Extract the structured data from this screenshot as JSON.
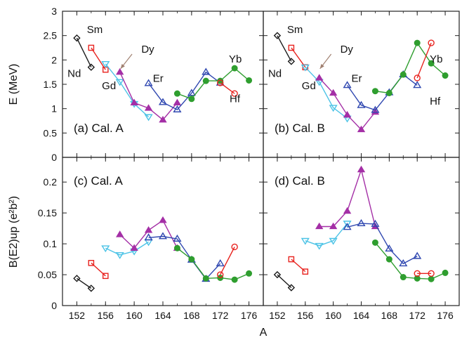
{
  "chart_data": {
    "type": "line",
    "xlabel": "A",
    "x_ticks": [
      152,
      156,
      160,
      164,
      168,
      172,
      176
    ],
    "xlim": [
      150,
      178
    ],
    "rows": [
      {
        "ylabel": "E (MeV)",
        "ylim": [
          0,
          3
        ],
        "y_ticks": [
          "0",
          "0.5",
          "1",
          "1.5",
          "2",
          "2.5",
          "3"
        ],
        "y_tick_values": [
          0,
          0.5,
          1,
          1.5,
          2,
          2.5,
          3
        ]
      },
      {
        "ylabel": "B(E2)up (e²b²)",
        "ylim": [
          0,
          0.24
        ],
        "y_ticks": [
          "0",
          "0.05",
          "0.1",
          "0.15",
          "0.2"
        ],
        "y_tick_values": [
          0,
          0.05,
          0.1,
          0.15,
          0.2
        ]
      }
    ],
    "series_style": [
      {
        "name": "Nd",
        "color": "#1a1a1a",
        "marker": "diamond"
      },
      {
        "name": "Sm",
        "color": "#e8231f",
        "marker": "square"
      },
      {
        "name": "Gd",
        "color": "#4cc3e6",
        "marker": "tri-down"
      },
      {
        "name": "Dy",
        "color": "#a42fa6",
        "marker": "tri-up"
      },
      {
        "name": "Er",
        "color": "#2f47b0",
        "marker": "tri-up-open"
      },
      {
        "name": "Yb",
        "color": "#2f9e2f",
        "marker": "circle-filled"
      },
      {
        "name": "Hf",
        "color": "#e8231f",
        "marker": "circle-open"
      }
    ],
    "panels": [
      {
        "label": "(a) Cal. A",
        "row": 0,
        "col": 0,
        "series": [
          {
            "name": "Nd",
            "x": [
              152,
              154
            ],
            "y": [
              2.45,
              1.85
            ]
          },
          {
            "name": "Sm",
            "x": [
              154,
              156
            ],
            "y": [
              2.25,
              1.8
            ]
          },
          {
            "name": "Gd",
            "x": [
              156,
              158,
              160,
              162
            ],
            "y": [
              1.92,
              1.55,
              1.1,
              0.83
            ]
          },
          {
            "name": "Dy",
            "x": [
              158,
              160,
              162,
              164,
              166
            ],
            "y": [
              1.75,
              1.12,
              1.01,
              0.77,
              1.12
            ]
          },
          {
            "name": "Er",
            "x": [
              162,
              164,
              166,
              168,
              170,
              172
            ],
            "y": [
              1.52,
              1.13,
              0.98,
              1.32,
              1.75,
              1.53
            ]
          },
          {
            "name": "Yb",
            "x": [
              166,
              168,
              170,
              172,
              174,
              176
            ],
            "y": [
              1.31,
              1.2,
              1.57,
              1.57,
              1.83,
              1.58
            ]
          },
          {
            "name": "Hf",
            "x": [
              172,
              174
            ],
            "y": [
              1.53,
              1.31
            ]
          }
        ],
        "annotations": [
          {
            "text": "Sm",
            "x": 153.4,
            "y": 2.55
          },
          {
            "text": "Dy",
            "x": 161.0,
            "y": 2.15
          },
          {
            "text": "Gd",
            "x": 155.5,
            "y": 1.4
          },
          {
            "text": "Nd",
            "x": 150.7,
            "y": 1.65
          },
          {
            "text": "Er",
            "x": 162.6,
            "y": 1.55
          },
          {
            "text": "Yb",
            "x": 173.2,
            "y": 1.95
          },
          {
            "text": "Hf",
            "x": 173.3,
            "y": 1.13
          }
        ],
        "arrow": {
          "from": [
            159.7,
            2.12
          ],
          "to": [
            158.1,
            1.82
          ]
        }
      },
      {
        "label": "(b) Cal. B",
        "row": 0,
        "col": 1,
        "series": [
          {
            "name": "Nd",
            "x": [
              152,
              154
            ],
            "y": [
              2.5,
              1.97
            ]
          },
          {
            "name": "Sm",
            "x": [
              154,
              156
            ],
            "y": [
              2.25,
              1.85
            ]
          },
          {
            "name": "Gd",
            "x": [
              156,
              158,
              160,
              162
            ],
            "y": [
              1.85,
              1.55,
              1.02,
              0.8
            ]
          },
          {
            "name": "Dy",
            "x": [
              158,
              160,
              162,
              164,
              166
            ],
            "y": [
              1.63,
              1.32,
              0.87,
              0.57,
              0.93
            ]
          },
          {
            "name": "Er",
            "x": [
              162,
              164,
              166,
              168,
              170,
              172
            ],
            "y": [
              1.48,
              1.07,
              0.97,
              1.33,
              1.7,
              1.48
            ]
          },
          {
            "name": "Yb",
            "x": [
              166,
              168,
              170,
              172,
              174,
              176
            ],
            "y": [
              1.36,
              1.32,
              1.7,
              2.35,
              1.93,
              1.68
            ]
          },
          {
            "name": "Hf",
            "x": [
              172,
              174
            ],
            "y": [
              1.63,
              2.35
            ]
          }
        ],
        "annotations": [
          {
            "text": "Sm",
            "x": 153.4,
            "y": 2.55
          },
          {
            "text": "Dy",
            "x": 161.0,
            "y": 2.15
          },
          {
            "text": "Gd",
            "x": 155.5,
            "y": 1.4
          },
          {
            "text": "Nd",
            "x": 150.7,
            "y": 1.65
          },
          {
            "text": "Er",
            "x": 162.6,
            "y": 1.55
          },
          {
            "text": "Yb",
            "x": 173.8,
            "y": 1.95
          },
          {
            "text": "Hf",
            "x": 173.8,
            "y": 1.08
          }
        ],
        "arrow": {
          "from": [
            159.7,
            2.12
          ],
          "to": [
            158.1,
            1.82
          ]
        }
      },
      {
        "label": "(c) Cal. A",
        "row": 1,
        "col": 0,
        "series": [
          {
            "name": "Nd",
            "x": [
              152,
              154
            ],
            "y": [
              0.044,
              0.028
            ]
          },
          {
            "name": "Sm",
            "x": [
              154,
              156
            ],
            "y": [
              0.069,
              0.048
            ]
          },
          {
            "name": "Gd",
            "x": [
              156,
              158,
              160,
              162
            ],
            "y": [
              0.093,
              0.082,
              0.088,
              0.103
            ]
          },
          {
            "name": "Dy",
            "x": [
              158,
              160,
              162,
              164,
              166
            ],
            "y": [
              0.115,
              0.093,
              0.122,
              0.138,
              0.093
            ]
          },
          {
            "name": "Er",
            "x": [
              162,
              164,
              166,
              168,
              170,
              172
            ],
            "y": [
              0.11,
              0.112,
              0.108,
              0.074,
              0.043,
              0.068
            ]
          },
          {
            "name": "Yb",
            "x": [
              166,
              168,
              170,
              172,
              174,
              176
            ],
            "y": [
              0.093,
              0.075,
              0.044,
              0.045,
              0.042,
              0.052
            ]
          },
          {
            "name": "Hf",
            "x": [
              172,
              174
            ],
            "y": [
              0.05,
              0.095
            ]
          }
        ],
        "annotations": [],
        "arrow": null
      },
      {
        "label": "(d) Cal. B",
        "row": 1,
        "col": 1,
        "series": [
          {
            "name": "Nd",
            "x": [
              152,
              154
            ],
            "y": [
              0.05,
              0.029
            ]
          },
          {
            "name": "Sm",
            "x": [
              154,
              156
            ],
            "y": [
              0.075,
              0.055
            ]
          },
          {
            "name": "Gd",
            "x": [
              156,
              158,
              160,
              162
            ],
            "y": [
              0.105,
              0.097,
              0.105,
              0.133
            ]
          },
          {
            "name": "Dy",
            "x": [
              158,
              160,
              162,
              164,
              166
            ],
            "y": [
              0.128,
              0.128,
              0.153,
              0.22,
              0.128
            ]
          },
          {
            "name": "Er",
            "x": [
              162,
              164,
              166,
              168,
              170,
              172
            ],
            "y": [
              0.127,
              0.133,
              0.132,
              0.092,
              0.068,
              0.08
            ]
          },
          {
            "name": "Yb",
            "x": [
              166,
              168,
              170,
              172,
              174,
              176
            ],
            "y": [
              0.102,
              0.075,
              0.046,
              0.044,
              0.043,
              0.053
            ]
          },
          {
            "name": "Hf",
            "x": [
              172,
              174
            ],
            "y": [
              0.052,
              0.052
            ]
          }
        ],
        "annotations": [],
        "arrow": null
      }
    ]
  }
}
